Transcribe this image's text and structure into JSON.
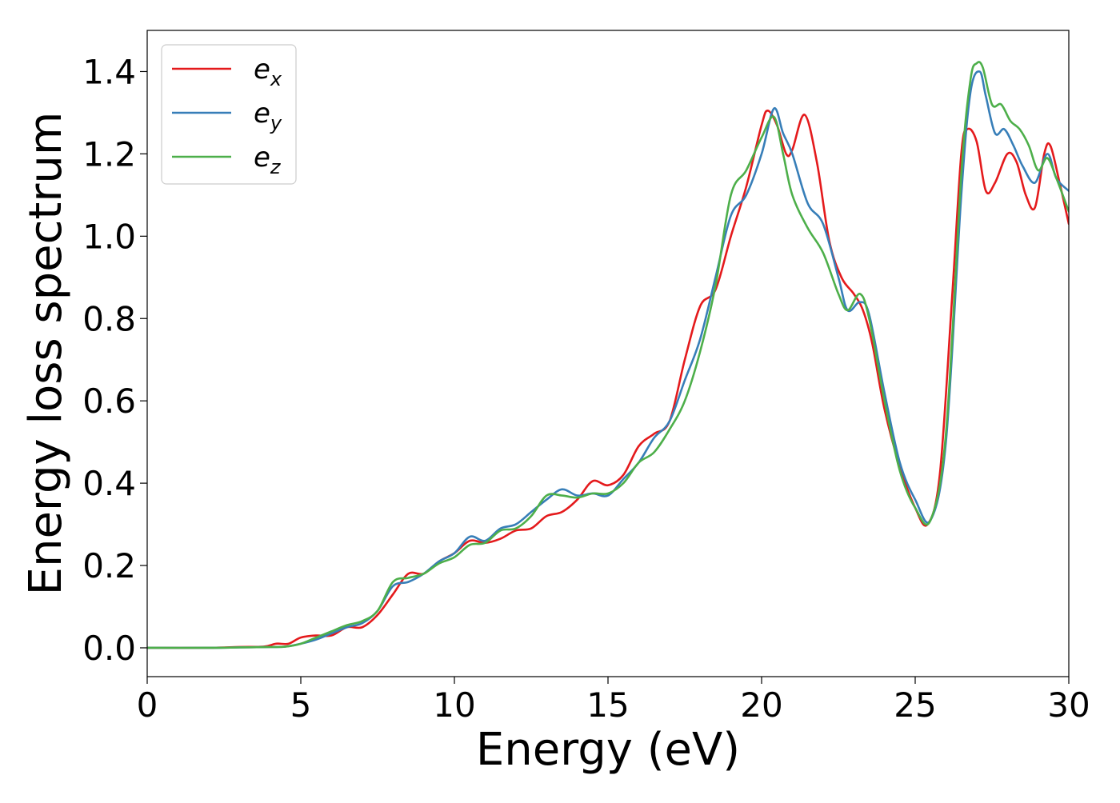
{
  "chart_data": {
    "type": "line",
    "title": "",
    "xlabel": "Energy (eV)",
    "ylabel": "Energy loss spectrum",
    "xlim": [
      0,
      30
    ],
    "ylim": [
      -0.07,
      1.5
    ],
    "xticks": [
      0,
      5,
      10,
      15,
      20,
      25,
      30
    ],
    "xtick_labels": [
      "0",
      "5",
      "10",
      "15",
      "20",
      "25",
      "30"
    ],
    "yticks": [
      0.0,
      0.2,
      0.4,
      0.6,
      0.8,
      1.0,
      1.2,
      1.4
    ],
    "ytick_labels": [
      "0.0",
      "0.2",
      "0.4",
      "0.6",
      "0.8",
      "1.0",
      "1.2",
      "1.4"
    ],
    "grid": false,
    "legend_position": "top-left",
    "series": [
      {
        "name": "e",
        "subscript": "x",
        "color": "#e41a1c",
        "x": [
          0,
          2,
          3,
          3.8,
          4.2,
          4.6,
          5.0,
          5.5,
          6.0,
          6.5,
          7.0,
          7.5,
          8.0,
          8.5,
          9.0,
          9.5,
          10.0,
          10.5,
          11.0,
          11.5,
          12.0,
          12.5,
          13.0,
          13.5,
          14.0,
          14.5,
          15.0,
          15.5,
          16.0,
          16.5,
          17.0,
          17.5,
          18.0,
          18.5,
          19.0,
          19.5,
          20.0,
          20.2,
          20.5,
          20.8,
          21.0,
          21.4,
          21.8,
          22.2,
          22.6,
          23.0,
          23.3,
          23.6,
          24.0,
          24.5,
          25.0,
          25.4,
          25.8,
          26.2,
          26.5,
          26.7,
          27.0,
          27.3,
          27.6,
          28.0,
          28.3,
          28.6,
          28.9,
          29.2,
          29.4,
          29.7,
          30.0
        ],
        "y": [
          0.0,
          0.0,
          0.002,
          0.003,
          0.01,
          0.01,
          0.025,
          0.03,
          0.03,
          0.05,
          0.05,
          0.08,
          0.13,
          0.18,
          0.18,
          0.21,
          0.23,
          0.26,
          0.255,
          0.265,
          0.285,
          0.29,
          0.32,
          0.33,
          0.36,
          0.405,
          0.395,
          0.42,
          0.49,
          0.52,
          0.55,
          0.7,
          0.83,
          0.87,
          1.0,
          1.12,
          1.27,
          1.305,
          1.27,
          1.2,
          1.21,
          1.295,
          1.18,
          0.99,
          0.9,
          0.86,
          0.82,
          0.74,
          0.58,
          0.44,
          0.34,
          0.3,
          0.42,
          0.85,
          1.2,
          1.26,
          1.23,
          1.11,
          1.13,
          1.2,
          1.18,
          1.1,
          1.07,
          1.2,
          1.22,
          1.13,
          1.03
        ]
      },
      {
        "name": "e",
        "subscript": "y",
        "color": "#377eb8",
        "x": [
          0,
          2,
          3,
          4,
          4.5,
          5.0,
          5.5,
          6.0,
          6.5,
          7.0,
          7.5,
          8.0,
          8.5,
          9.0,
          9.5,
          10.0,
          10.5,
          11.0,
          11.5,
          12.0,
          12.5,
          13.0,
          13.5,
          14.0,
          14.5,
          15.0,
          15.5,
          16.0,
          16.5,
          17.0,
          17.5,
          18.0,
          18.5,
          19.0,
          19.5,
          20.0,
          20.4,
          20.7,
          21.0,
          21.5,
          22.0,
          22.5,
          22.8,
          23.2,
          23.5,
          24.0,
          24.5,
          25.0,
          25.5,
          26.0,
          26.5,
          26.8,
          27.1,
          27.3,
          27.6,
          27.9,
          28.2,
          28.5,
          28.9,
          29.3,
          29.6,
          30.0
        ],
        "y": [
          0.0,
          0.0,
          0.001,
          0.002,
          0.003,
          0.01,
          0.02,
          0.035,
          0.05,
          0.06,
          0.09,
          0.15,
          0.16,
          0.18,
          0.21,
          0.23,
          0.27,
          0.26,
          0.29,
          0.3,
          0.33,
          0.36,
          0.385,
          0.37,
          0.375,
          0.37,
          0.41,
          0.45,
          0.51,
          0.55,
          0.65,
          0.75,
          0.9,
          1.05,
          1.1,
          1.2,
          1.31,
          1.25,
          1.2,
          1.08,
          1.03,
          0.9,
          0.82,
          0.84,
          0.81,
          0.62,
          0.45,
          0.36,
          0.31,
          0.5,
          1.1,
          1.35,
          1.4,
          1.34,
          1.25,
          1.26,
          1.22,
          1.17,
          1.13,
          1.2,
          1.14,
          1.11
        ]
      },
      {
        "name": "e",
        "subscript": "z",
        "color": "#4daf4a",
        "x": [
          0,
          2,
          3,
          4,
          4.5,
          5.0,
          5.5,
          6.0,
          6.5,
          7.0,
          7.5,
          8.0,
          8.5,
          9.0,
          9.5,
          10.0,
          10.5,
          11.0,
          11.5,
          12.0,
          12.5,
          13.0,
          13.5,
          14.0,
          14.5,
          15.0,
          15.5,
          16.0,
          16.5,
          17.0,
          17.5,
          18.0,
          18.5,
          19.0,
          19.5,
          20.0,
          20.4,
          20.7,
          21.0,
          21.5,
          22.0,
          22.5,
          22.8,
          23.2,
          23.5,
          24.0,
          24.5,
          25.0,
          25.5,
          26.0,
          26.5,
          26.8,
          27.0,
          27.2,
          27.5,
          27.8,
          28.1,
          28.4,
          28.7,
          29.0,
          29.3,
          29.6,
          30.0
        ],
        "y": [
          0.0,
          0.0,
          0.001,
          0.002,
          0.003,
          0.01,
          0.025,
          0.04,
          0.055,
          0.065,
          0.09,
          0.16,
          0.17,
          0.18,
          0.205,
          0.22,
          0.25,
          0.255,
          0.285,
          0.29,
          0.32,
          0.37,
          0.37,
          0.365,
          0.375,
          0.375,
          0.4,
          0.45,
          0.475,
          0.53,
          0.6,
          0.72,
          0.88,
          1.1,
          1.16,
          1.24,
          1.29,
          1.2,
          1.1,
          1.02,
          0.96,
          0.86,
          0.82,
          0.86,
          0.8,
          0.6,
          0.43,
          0.34,
          0.31,
          0.52,
          1.15,
          1.38,
          1.42,
          1.41,
          1.32,
          1.32,
          1.28,
          1.26,
          1.22,
          1.16,
          1.19,
          1.14,
          1.06
        ]
      }
    ]
  }
}
